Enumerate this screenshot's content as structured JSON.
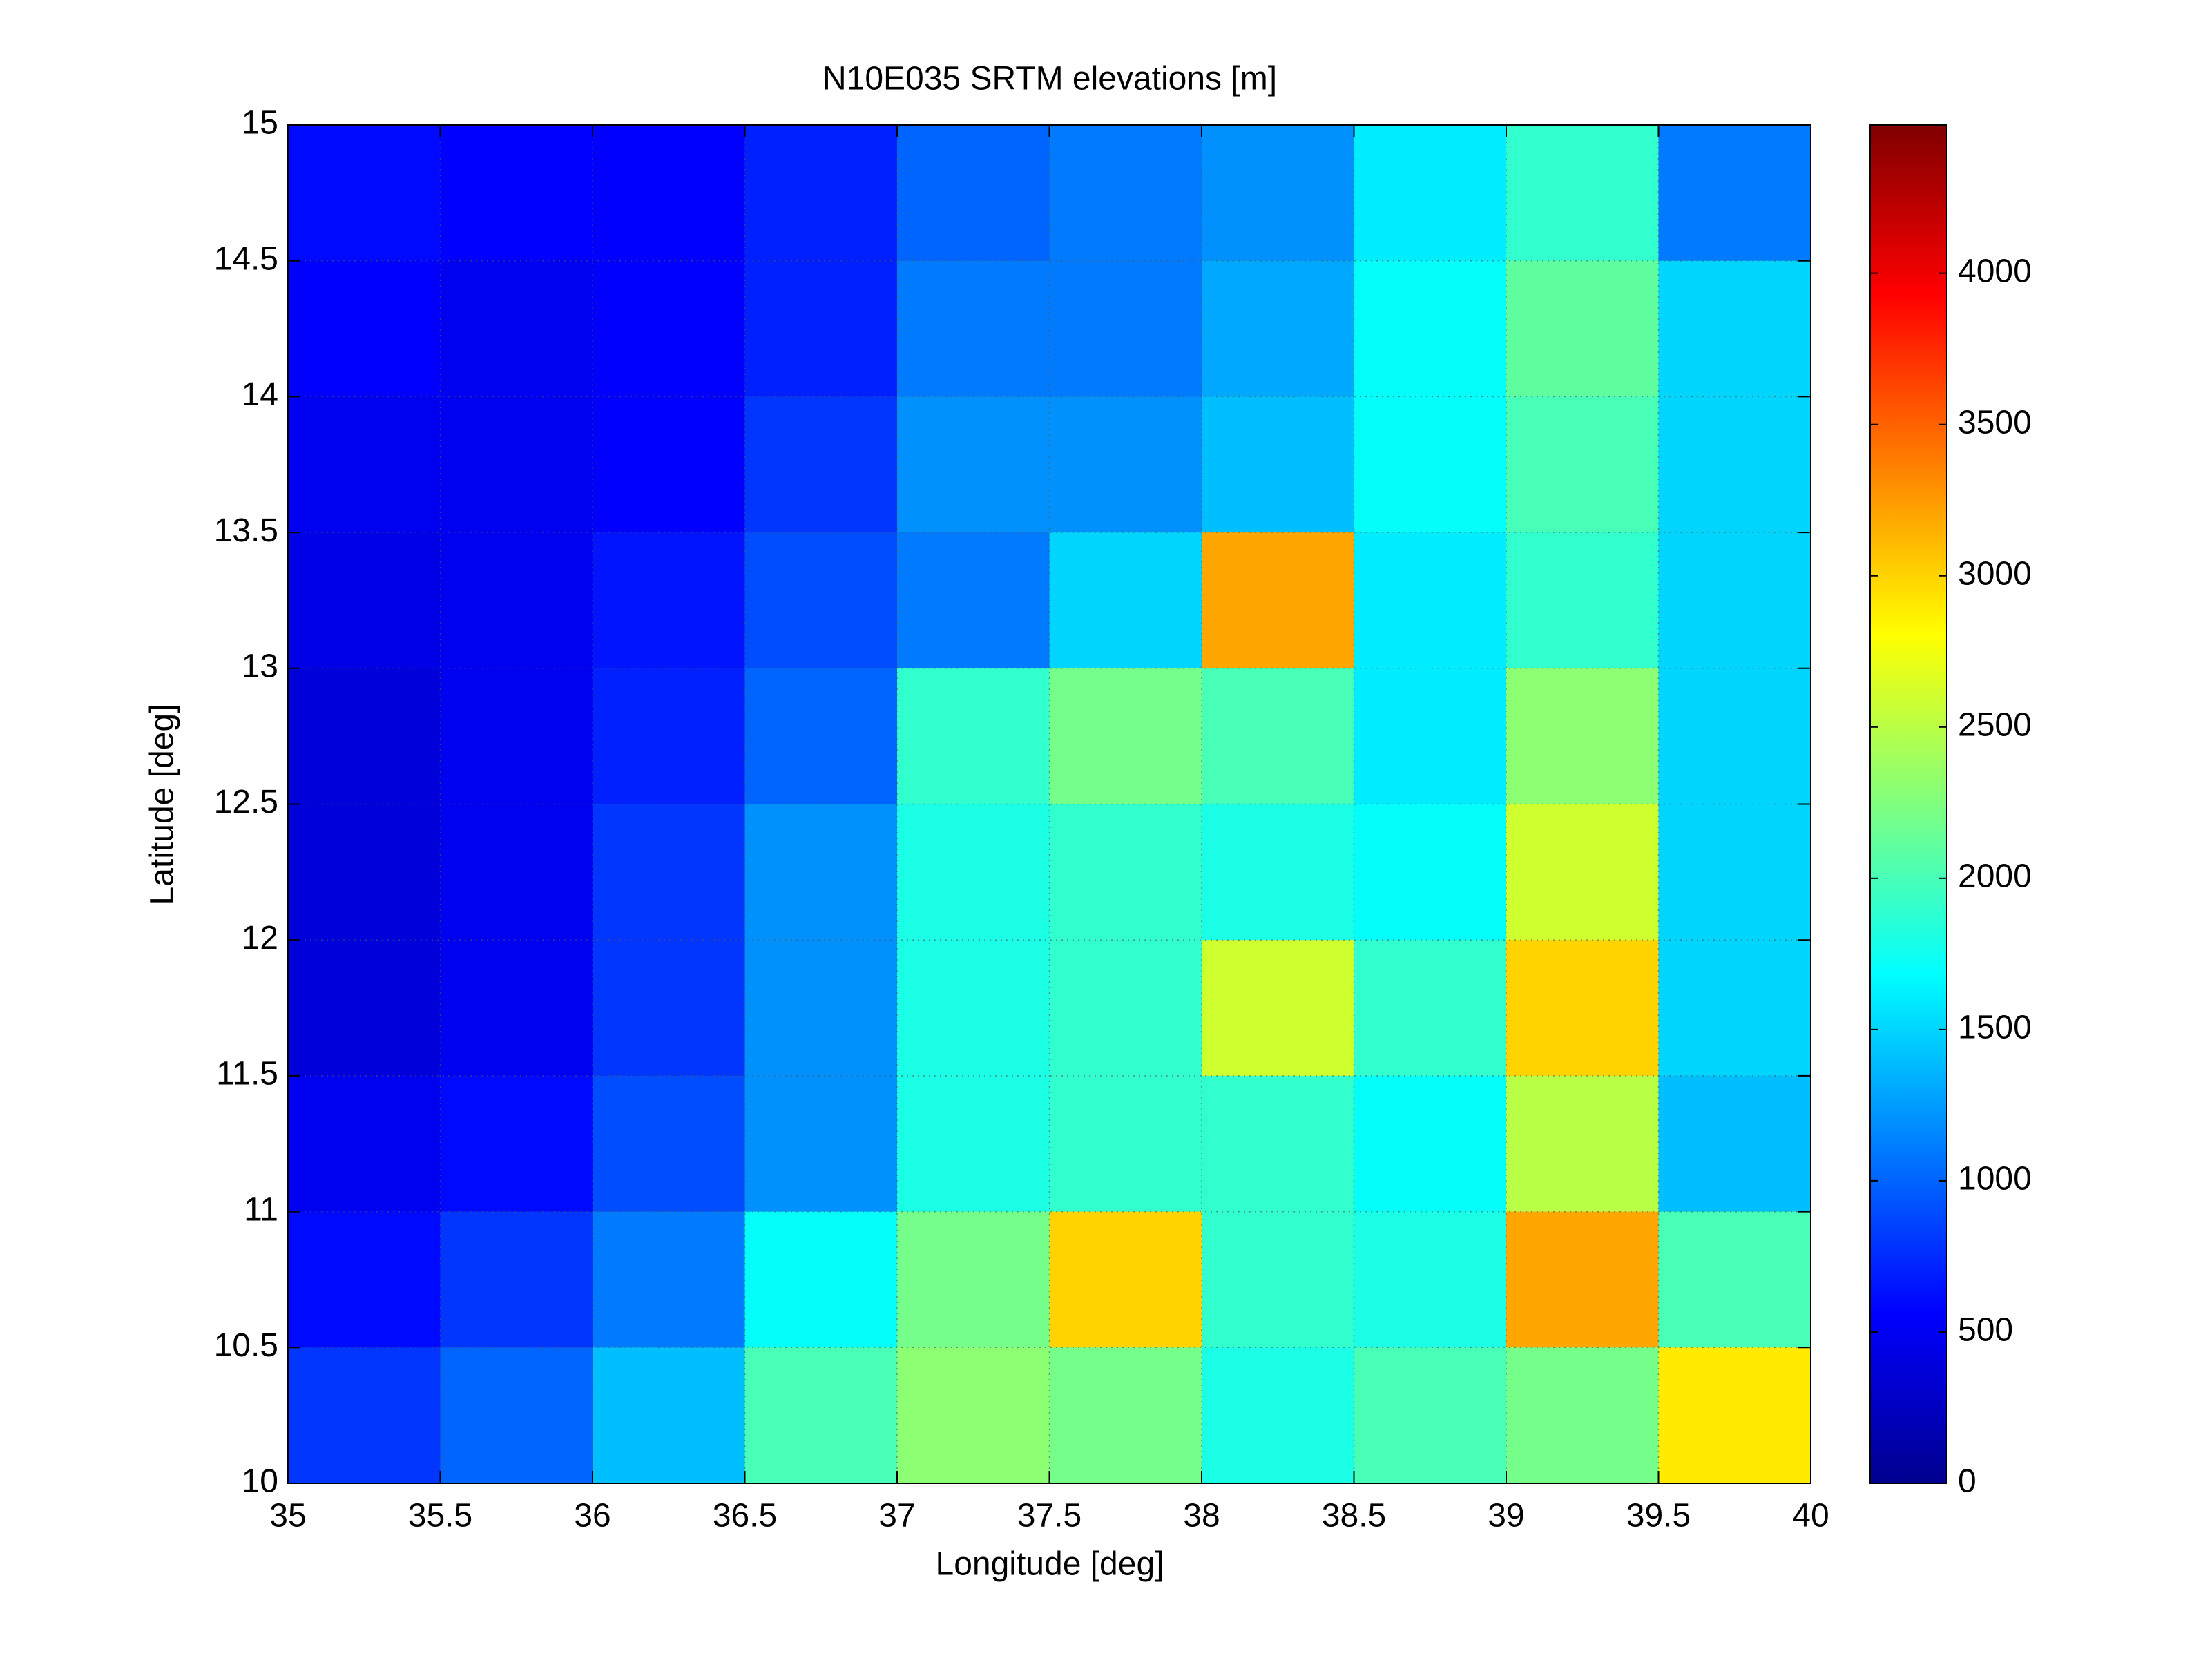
{
  "chart_data": {
    "type": "heatmap",
    "title": "N10E035 SRTM elevations [m]",
    "xlabel": "Longitude [deg]",
    "ylabel": "Latitude [deg]",
    "xlim": [
      35,
      40
    ],
    "ylim": [
      10,
      15
    ],
    "xticks": [
      35,
      35.5,
      36,
      36.5,
      37,
      37.5,
      38,
      38.5,
      39,
      39.5,
      40
    ],
    "yticks": [
      10,
      10.5,
      11,
      11.5,
      12,
      12.5,
      13,
      13.5,
      14,
      14.5,
      15
    ],
    "clim": [
      0,
      4490
    ],
    "cticks": [
      0,
      500,
      1000,
      1500,
      2000,
      2500,
      3000,
      3500,
      4000
    ],
    "colormap": "jet",
    "grid": true,
    "z": [
      [
        600,
        550,
        550,
        700,
        1000,
        1100,
        1200,
        1600,
        1900,
        1100
      ],
      [
        550,
        500,
        550,
        700,
        1100,
        1100,
        1300,
        1700,
        2100,
        1500
      ],
      [
        500,
        500,
        550,
        800,
        1200,
        1200,
        1400,
        1700,
        2000,
        1500
      ],
      [
        450,
        500,
        650,
        900,
        1100,
        1500,
        3200,
        1600,
        1900,
        1500
      ],
      [
        400,
        500,
        700,
        1000,
        1900,
        2200,
        2000,
        1600,
        2300,
        1500
      ],
      [
        400,
        500,
        800,
        1200,
        1800,
        1900,
        1800,
        1700,
        2600,
        1500
      ],
      [
        400,
        500,
        800,
        1200,
        1800,
        1900,
        2600,
        1900,
        3000,
        1500
      ],
      [
        500,
        600,
        900,
        1200,
        1800,
        1900,
        1900,
        1700,
        2500,
        1400
      ],
      [
        600,
        800,
        1100,
        1700,
        2200,
        3000,
        1900,
        1800,
        3200,
        2000
      ],
      [
        800,
        1000,
        1400,
        2000,
        2300,
        2200,
        1800,
        2000,
        2200,
        2900
      ]
    ]
  }
}
